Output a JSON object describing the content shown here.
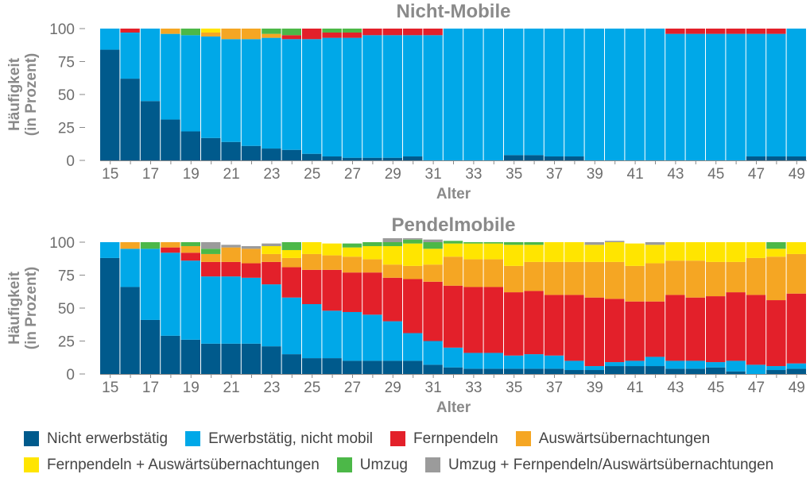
{
  "chart_data": {
    "type": "bar",
    "stacked": true,
    "legend_position": "bottom",
    "x": [
      15,
      16,
      17,
      18,
      19,
      20,
      21,
      22,
      23,
      24,
      25,
      26,
      27,
      28,
      29,
      30,
      31,
      32,
      33,
      34,
      35,
      36,
      37,
      38,
      39,
      40,
      41,
      42,
      43,
      44,
      45,
      46,
      47,
      48,
      49
    ],
    "xticks": [
      15,
      17,
      19,
      21,
      23,
      25,
      27,
      29,
      31,
      33,
      35,
      37,
      39,
      41,
      43,
      45,
      47,
      49
    ],
    "xlabel": "Alter",
    "ylabel": [
      "Häufigkeit",
      "(in Prozent)"
    ],
    "ylim": [
      0,
      100
    ],
    "yticks": [
      0,
      25,
      50,
      75,
      100
    ],
    "categories": [
      {
        "key": "nicht_erwerbstaetig",
        "name": "Nicht erwerbstätig",
        "color": "#005a8c"
      },
      {
        "key": "erwerbstaetig_nicht_mobil",
        "name": "Erwerbstätig, nicht mobil",
        "color": "#00a8e8"
      },
      {
        "key": "fernpendeln",
        "name": "Fernpendeln",
        "color": "#e3202a"
      },
      {
        "key": "auswaertsuebernachtungen",
        "name": "Auswärtsübernachtungen",
        "color": "#f5a623"
      },
      {
        "key": "fernpendeln_auswaerts",
        "name": "Fernpendeln + Auswärtsübernachtungen",
        "color": "#ffe500"
      },
      {
        "key": "umzug",
        "name": "Umzug",
        "color": "#4cb848"
      },
      {
        "key": "umzug_fernpendeln",
        "name": "Umzug + Fernpendeln/Auswärtsübernachtungen",
        "color": "#9b9b9b"
      }
    ],
    "panels": [
      {
        "title": "Nicht-Mobile",
        "series": {
          "nicht_erwerbstaetig": [
            84,
            62,
            45,
            31,
            22,
            17,
            14,
            11,
            9,
            8,
            5,
            3,
            2,
            2,
            2,
            3,
            0,
            0,
            0,
            0,
            4,
            4,
            3,
            3,
            0,
            0,
            0,
            0,
            0,
            0,
            0,
            0,
            3,
            3,
            3
          ],
          "erwerbstaetig_nicht_mobil": [
            16,
            35,
            55,
            65,
            73,
            77,
            78,
            81,
            84,
            84,
            87,
            90,
            91,
            93,
            93,
            92,
            95,
            100,
            100,
            100,
            96,
            96,
            97,
            97,
            100,
            100,
            100,
            100,
            96,
            96,
            96,
            96,
            93,
            93,
            97
          ],
          "fernpendeln": [
            0,
            3,
            0,
            0,
            0,
            0,
            0,
            0,
            0,
            3,
            8,
            4,
            4,
            5,
            5,
            5,
            5,
            0,
            0,
            0,
            0,
            0,
            0,
            0,
            0,
            0,
            0,
            0,
            4,
            4,
            4,
            4,
            4,
            4,
            0
          ],
          "auswaertsuebernachtungen": [
            0,
            0,
            0,
            4,
            0,
            3,
            8,
            8,
            3,
            0,
            0,
            0,
            0,
            0,
            0,
            0,
            0,
            0,
            0,
            0,
            0,
            0,
            0,
            0,
            0,
            0,
            0,
            0,
            0,
            0,
            0,
            0,
            0,
            0,
            0
          ],
          "fernpendeln_auswaerts": [
            0,
            0,
            0,
            0,
            0,
            3,
            0,
            0,
            0,
            0,
            0,
            0,
            0,
            0,
            0,
            0,
            0,
            0,
            0,
            0,
            0,
            0,
            0,
            0,
            0,
            0,
            0,
            0,
            0,
            0,
            0,
            0,
            0,
            0,
            0
          ],
          "umzug": [
            0,
            0,
            0,
            0,
            5,
            0,
            0,
            0,
            4,
            5,
            0,
            3,
            3,
            0,
            0,
            0,
            0,
            0,
            0,
            0,
            0,
            0,
            0,
            0,
            0,
            0,
            0,
            0,
            0,
            0,
            0,
            0,
            0,
            0,
            0
          ],
          "umzug_fernpendeln": [
            0,
            0,
            0,
            0,
            0,
            0,
            0,
            0,
            0,
            0,
            0,
            0,
            0,
            0,
            0,
            0,
            0,
            0,
            0,
            0,
            0,
            0,
            0,
            0,
            0,
            0,
            0,
            0,
            0,
            0,
            0,
            0,
            0,
            0,
            0
          ]
        }
      },
      {
        "title": "Pendelmobile",
        "series": {
          "nicht_erwerbstaetig": [
            88,
            66,
            41,
            29,
            26,
            23,
            23,
            23,
            21,
            15,
            12,
            12,
            10,
            10,
            10,
            10,
            7,
            5,
            4,
            4,
            4,
            4,
            4,
            3,
            3,
            6,
            6,
            6,
            4,
            4,
            5,
            2,
            0,
            3,
            4
          ],
          "erwerbstaetig_nicht_mobil": [
            12,
            29,
            54,
            63,
            60,
            51,
            51,
            50,
            47,
            43,
            41,
            36,
            37,
            35,
            30,
            21,
            18,
            15,
            12,
            12,
            10,
            11,
            10,
            7,
            3,
            3,
            4,
            7,
            6,
            6,
            4,
            8,
            7,
            3,
            4
          ],
          "fernpendeln": [
            0,
            0,
            0,
            4,
            6,
            11,
            11,
            11,
            17,
            23,
            26,
            31,
            30,
            32,
            33,
            41,
            45,
            47,
            50,
            50,
            48,
            48,
            46,
            50,
            52,
            48,
            45,
            42,
            50,
            48,
            50,
            52,
            53,
            50,
            53
          ],
          "auswaertsuebernachtungen": [
            0,
            5,
            0,
            4,
            5,
            6,
            11,
            11,
            6,
            7,
            12,
            11,
            12,
            10,
            10,
            10,
            13,
            22,
            21,
            21,
            20,
            22,
            25,
            25,
            27,
            28,
            27,
            29,
            26,
            28,
            26,
            23,
            28,
            33,
            30
          ],
          "fernpendeln_auswaerts": [
            0,
            0,
            0,
            0,
            0,
            0,
            0,
            0,
            6,
            6,
            9,
            9,
            7,
            10,
            14,
            17,
            12,
            10,
            12,
            12,
            16,
            13,
            15,
            15,
            13,
            15,
            17,
            14,
            14,
            14,
            15,
            15,
            12,
            6,
            9
          ],
          "umzug": [
            0,
            0,
            5,
            0,
            3,
            4,
            0,
            0,
            0,
            6,
            0,
            0,
            3,
            3,
            3,
            3,
            5,
            2,
            1,
            1,
            2,
            2,
            0,
            0,
            0,
            0,
            0,
            0,
            0,
            0,
            0,
            0,
            0,
            5,
            0
          ],
          "umzug_fernpendeln": [
            0,
            0,
            0,
            0,
            0,
            5,
            2,
            2,
            2,
            0,
            0,
            0,
            0,
            0,
            3,
            1,
            2,
            0,
            0,
            0,
            0,
            0,
            0,
            0,
            2,
            1,
            0,
            2,
            0,
            0,
            0,
            0,
            0,
            0,
            0
          ]
        }
      }
    ]
  }
}
